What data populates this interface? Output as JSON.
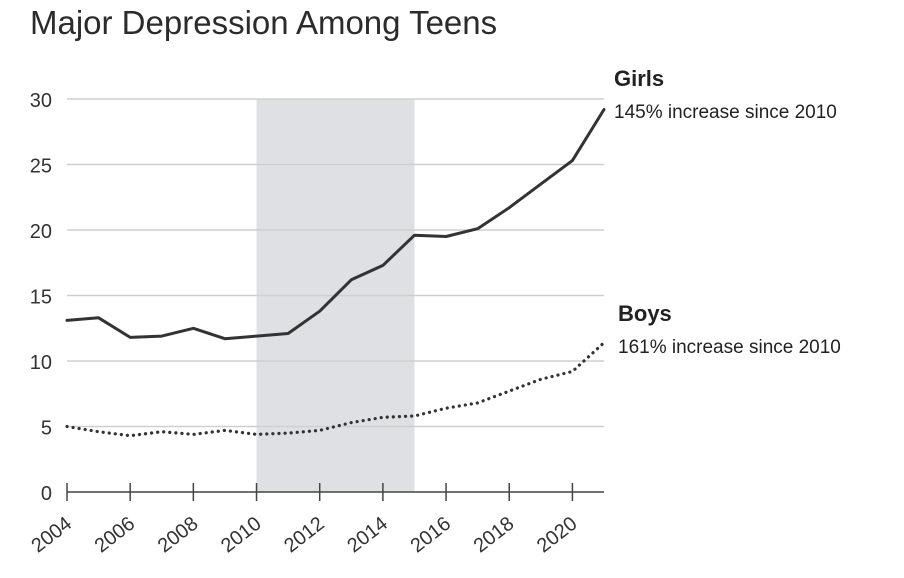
{
  "chart_data": {
    "type": "line",
    "title": "Major Depression Among Teens",
    "xlabel": "",
    "ylabel": "",
    "xlim": [
      2004,
      2021
    ],
    "ylim": [
      0,
      30
    ],
    "yticks": [
      0,
      5,
      10,
      15,
      20,
      25,
      30
    ],
    "xticks": [
      2004,
      2006,
      2008,
      2010,
      2012,
      2014,
      2016,
      2018,
      2020
    ],
    "grid": true,
    "highlight_range": [
      2010,
      2015
    ],
    "x": [
      2004,
      2005,
      2006,
      2007,
      2008,
      2009,
      2010,
      2011,
      2012,
      2013,
      2014,
      2015,
      2016,
      2017,
      2018,
      2019,
      2020,
      2021
    ],
    "series": [
      {
        "name": "Girls",
        "annotation": "145% increase since 2010",
        "style": "solid",
        "color": "#333333",
        "values": [
          13.1,
          13.3,
          11.8,
          11.9,
          12.5,
          11.7,
          11.9,
          12.1,
          13.8,
          16.2,
          17.3,
          19.6,
          19.5,
          20.1,
          21.7,
          23.5,
          25.3,
          29.2
        ]
      },
      {
        "name": "Boys",
        "annotation": "161% increase since 2010",
        "style": "dotted",
        "color": "#333333",
        "values": [
          5.0,
          4.6,
          4.3,
          4.6,
          4.4,
          4.7,
          4.4,
          4.5,
          4.7,
          5.3,
          5.7,
          5.8,
          6.4,
          6.8,
          7.7,
          8.6,
          9.2,
          11.4
        ]
      }
    ]
  }
}
